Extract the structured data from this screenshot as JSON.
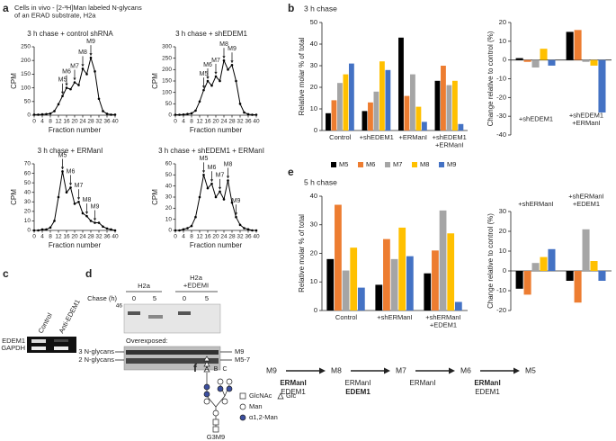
{
  "panel_labels": [
    "a",
    "b",
    "c",
    "d",
    "e",
    "f"
  ],
  "panel_a": {
    "header": "Cells in vivo - [2-³H]Man labeled N-glycans\nof an ERAD substrate, H2a"
  },
  "chart_data": [
    {
      "type": "line",
      "title": "3 h chase + control shRNA",
      "x_label": "Fraction number",
      "y_label": "CPM",
      "color": "#000000",
      "x": [
        0,
        2,
        4,
        6,
        8,
        10,
        12,
        14,
        16,
        18,
        20,
        22,
        24,
        26,
        28,
        30,
        32,
        34,
        36,
        38,
        40
      ],
      "values": [
        2,
        2,
        3,
        4,
        6,
        15,
        40,
        70,
        100,
        95,
        120,
        110,
        170,
        150,
        210,
        160,
        60,
        15,
        5,
        2,
        2
      ],
      "xlim": [
        0,
        40
      ],
      "xticks": [
        0,
        4,
        8,
        12,
        16,
        20,
        24,
        28,
        32,
        36,
        40
      ],
      "ylim": [
        0,
        250
      ],
      "yticks": [
        0,
        50,
        100,
        150,
        200,
        250
      ],
      "annotations": [
        {
          "label": "M5",
          "x": 14
        },
        {
          "label": "M6",
          "x": 16
        },
        {
          "label": "M7",
          "x": 20
        },
        {
          "label": "M8",
          "x": 24
        },
        {
          "label": "M9",
          "x": 28
        }
      ]
    },
    {
      "type": "line",
      "title": "3 h chase + shEDEM1",
      "x_label": "Fraction number",
      "y_label": "CPM",
      "color": "#000000",
      "x": [
        0,
        2,
        4,
        6,
        8,
        10,
        12,
        14,
        16,
        18,
        20,
        22,
        24,
        26,
        28,
        30,
        32,
        34,
        36,
        38,
        40
      ],
      "values": [
        2,
        2,
        3,
        5,
        8,
        20,
        60,
        110,
        150,
        130,
        170,
        150,
        240,
        200,
        220,
        150,
        50,
        12,
        4,
        2,
        2
      ],
      "xlim": [
        0,
        40
      ],
      "xticks": [
        0,
        4,
        8,
        12,
        16,
        20,
        24,
        28,
        32,
        36,
        40
      ],
      "ylim": [
        0,
        300
      ],
      "yticks": [
        0,
        50,
        100,
        150,
        200,
        250,
        300
      ],
      "annotations": [
        {
          "label": "M5",
          "x": 14
        },
        {
          "label": "M6",
          "x": 16
        },
        {
          "label": "M7",
          "x": 20
        },
        {
          "label": "M8",
          "x": 24
        },
        {
          "label": "M9",
          "x": 28
        }
      ]
    },
    {
      "type": "line",
      "title": "3 h chase + ERManI",
      "x_label": "Fraction number",
      "y_label": "CPM",
      "color": "#000000",
      "x": [
        0,
        2,
        4,
        6,
        8,
        10,
        12,
        14,
        16,
        18,
        20,
        22,
        24,
        26,
        28,
        30,
        32,
        34,
        36,
        38,
        40
      ],
      "values": [
        0,
        0,
        1,
        1,
        3,
        10,
        35,
        62,
        40,
        45,
        28,
        30,
        18,
        15,
        10,
        8,
        8,
        4,
        2,
        1,
        0
      ],
      "xlim": [
        0,
        40
      ],
      "xticks": [
        0,
        4,
        8,
        12,
        16,
        20,
        24,
        28,
        32,
        36,
        40
      ],
      "ylim": [
        0,
        70
      ],
      "yticks": [
        0,
        10,
        20,
        30,
        40,
        50,
        60,
        70
      ],
      "annotations": [
        {
          "label": "M5",
          "x": 14
        },
        {
          "label": "M6",
          "x": 18
        },
        {
          "label": "M7",
          "x": 22
        },
        {
          "label": "M8",
          "x": 26
        },
        {
          "label": "M9",
          "x": 30
        }
      ]
    },
    {
      "type": "line",
      "title": "3 h chase + shEDEM1 + ERManI",
      "x_label": "Fraction number",
      "y_label": "CPM",
      "color": "#000000",
      "x": [
        0,
        2,
        4,
        6,
        8,
        10,
        12,
        14,
        16,
        18,
        20,
        22,
        24,
        26,
        28,
        30,
        32,
        34,
        36,
        38,
        40
      ],
      "values": [
        0,
        0,
        1,
        2,
        4,
        12,
        30,
        50,
        38,
        42,
        30,
        35,
        28,
        45,
        25,
        12,
        5,
        2,
        1,
        0,
        0
      ],
      "xlim": [
        0,
        40
      ],
      "xticks": [
        0,
        4,
        8,
        12,
        16,
        20,
        24,
        28,
        32,
        36,
        40
      ],
      "ylim": [
        0,
        60
      ],
      "yticks": [
        0,
        10,
        20,
        30,
        40,
        50,
        60
      ],
      "annotations": [
        {
          "label": "M5",
          "x": 14
        },
        {
          "label": "M6",
          "x": 18
        },
        {
          "label": "M7",
          "x": 22
        },
        {
          "label": "M8",
          "x": 26
        },
        {
          "label": "M9",
          "x": 30
        }
      ]
    },
    {
      "type": "bar",
      "title": "3 h chase",
      "y_label": "Relative molar % of total",
      "categories": [
        "Control",
        "+shEDEM1",
        "+ERManI",
        "+shEDEM1\n+ERManI"
      ],
      "series": [
        {
          "name": "M5",
          "color": "#000000",
          "values": [
            8,
            9,
            43,
            23
          ]
        },
        {
          "name": "M6",
          "color": "#ed7d31",
          "values": [
            14,
            13,
            16,
            30
          ]
        },
        {
          "name": "M7",
          "color": "#a5a5a5",
          "values": [
            22,
            18,
            26,
            21
          ]
        },
        {
          "name": "M8",
          "color": "#ffc000",
          "values": [
            26,
            32,
            11,
            23
          ]
        },
        {
          "name": "M9",
          "color": "#4472c4",
          "values": [
            31,
            28,
            4,
            3
          ]
        }
      ],
      "ylim": [
        0,
        50
      ],
      "yticks": [
        0,
        10,
        20,
        30,
        40,
        50
      ],
      "legend": "bottom"
    },
    {
      "type": "bar",
      "y_label": "Change relative to control (%)",
      "categories": [
        "+shEDEM1",
        "+shEDEM1\n+ERManI"
      ],
      "series": [
        {
          "color": "#000000",
          "values": [
            1,
            15
          ]
        },
        {
          "color": "#ed7d31",
          "values": [
            -1,
            16
          ]
        },
        {
          "color": "#a5a5a5",
          "values": [
            -4,
            -1
          ]
        },
        {
          "color": "#ffc000",
          "values": [
            6,
            -3
          ]
        },
        {
          "color": "#4472c4",
          "values": [
            -3,
            -28
          ]
        }
      ],
      "ylim": [
        -40,
        20
      ],
      "yticks": [
        -40,
        -30,
        -20,
        -10,
        0,
        10,
        20
      ]
    },
    {
      "type": "bar",
      "title": "5 h chase",
      "y_label": "Relative molar % of total",
      "categories": [
        "Control",
        "+shERManI",
        "+shERManI\n+EDEM1"
      ],
      "series": [
        {
          "color": "#000000",
          "values": [
            18,
            9,
            13
          ]
        },
        {
          "color": "#ed7d31",
          "values": [
            37,
            25,
            21
          ]
        },
        {
          "color": "#a5a5a5",
          "values": [
            14,
            18,
            35
          ]
        },
        {
          "color": "#ffc000",
          "values": [
            22,
            29,
            27
          ]
        },
        {
          "color": "#4472c4",
          "values": [
            8,
            19,
            3
          ]
        }
      ],
      "ylim": [
        0,
        40
      ],
      "yticks": [
        0,
        10,
        20,
        30,
        40
      ]
    },
    {
      "type": "bar",
      "y_label": "Change relative to control (%)",
      "categories": [
        "+shERManI",
        "+shERManI\n+EDEM1"
      ],
      "series": [
        {
          "color": "#000000",
          "values": [
            -9,
            -5
          ]
        },
        {
          "color": "#ed7d31",
          "values": [
            -12,
            -16
          ]
        },
        {
          "color": "#a5a5a5",
          "values": [
            4,
            21
          ]
        },
        {
          "color": "#ffc000",
          "values": [
            7,
            5
          ]
        },
        {
          "color": "#4472c4",
          "values": [
            11,
            -5
          ]
        }
      ],
      "ylim": [
        -20,
        30
      ],
      "yticks": [
        -20,
        -10,
        0,
        10,
        20,
        30
      ]
    }
  ],
  "panel_c": {
    "columns": [
      "Control",
      "Anti-EDEM1"
    ],
    "rows": [
      "EDEM1",
      "GAPDH"
    ]
  },
  "panel_d": {
    "groups": [
      "H2a",
      "H2a\n+EDEMI"
    ],
    "chase_label": "Chase (h)",
    "times": [
      "0",
      "5",
      "0",
      "5"
    ],
    "marker": "46",
    "overexposed": "Overexposed:",
    "left_labels": [
      "3 N-glycans",
      "2 N-glycans"
    ],
    "right_labels": [
      "M9",
      "M5-7"
    ]
  },
  "panel_f": {
    "branches": [
      "A",
      "B",
      "C"
    ],
    "structure": "G3M9",
    "legend": [
      "GlcNAc",
      "Glc",
      "Man",
      "α1,2-Man"
    ],
    "steps": [
      "M9",
      "M8",
      "M7",
      "M6",
      "M5"
    ],
    "enzymes": [
      [
        {
          "name": "ERManI",
          "major": true,
          "color": "#2e75b6"
        },
        {
          "name": "EDEM1",
          "major": false,
          "color": "#e5482c"
        }
      ],
      [
        {
          "name": "ERManI",
          "major": false,
          "color": "#2e75b6"
        },
        {
          "name": "EDEM1",
          "major": true,
          "color": "#e5482c"
        }
      ],
      [
        {
          "name": "ERManI",
          "major": false,
          "color": "#2e75b6"
        }
      ],
      [
        {
          "name": "ERManI",
          "major": true,
          "color": "#2e75b6"
        },
        {
          "name": "EDEM1",
          "major": false,
          "color": "#e5482c"
        }
      ]
    ]
  }
}
